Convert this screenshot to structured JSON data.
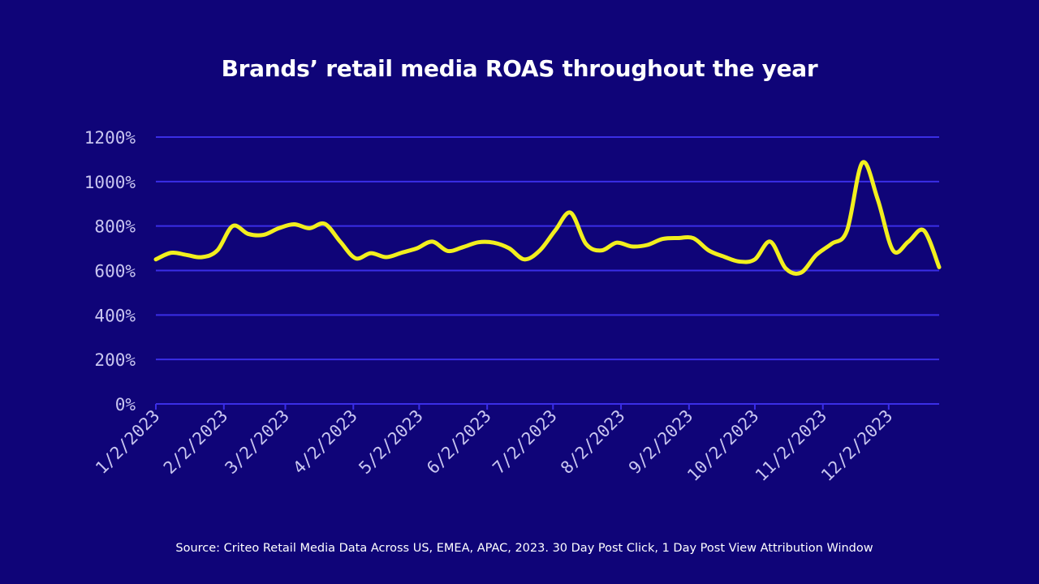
{
  "chart_data": {
    "type": "line",
    "title": "Brands’ retail media ROAS throughout the year",
    "xlabel": "",
    "ylabel": "",
    "ylim": [
      0,
      1200
    ],
    "y_ticks": [
      "0%",
      "200%",
      "400%",
      "600%",
      "800%",
      "1000%",
      "1200%"
    ],
    "x_ticks": [
      "1/2/2023",
      "2/2/2023",
      "3/2/2023",
      "4/2/2023",
      "5/2/2023",
      "6/2/2023",
      "7/2/2023",
      "8/2/2023",
      "9/2/2023",
      "10/2/2023",
      "11/2/2023",
      "12/2/2023"
    ],
    "grid": true,
    "series": [
      {
        "values": [
          [
            "2023-01-02",
            650
          ],
          [
            "2023-01-09",
            680
          ],
          [
            "2023-01-16",
            670
          ],
          [
            "2023-01-23",
            660
          ],
          [
            "2023-01-30",
            690
          ],
          [
            "2023-02-06",
            800
          ],
          [
            "2023-02-13",
            765
          ],
          [
            "2023-02-20",
            760
          ],
          [
            "2023-02-27",
            790
          ],
          [
            "2023-03-06",
            808
          ],
          [
            "2023-03-13",
            790
          ],
          [
            "2023-03-20",
            810
          ],
          [
            "2023-03-27",
            730
          ],
          [
            "2023-04-03",
            655
          ],
          [
            "2023-04-10",
            678
          ],
          [
            "2023-04-17",
            660
          ],
          [
            "2023-04-24",
            680
          ],
          [
            "2023-05-01",
            700
          ],
          [
            "2023-05-08",
            730
          ],
          [
            "2023-05-15",
            688
          ],
          [
            "2023-05-22",
            705
          ],
          [
            "2023-05-29",
            727
          ],
          [
            "2023-06-05",
            725
          ],
          [
            "2023-06-12",
            700
          ],
          [
            "2023-06-19",
            650
          ],
          [
            "2023-06-26",
            690
          ],
          [
            "2023-07-03",
            780
          ],
          [
            "2023-07-10",
            860
          ],
          [
            "2023-07-17",
            720
          ],
          [
            "2023-07-24",
            690
          ],
          [
            "2023-07-31",
            725
          ],
          [
            "2023-08-07",
            708
          ],
          [
            "2023-08-14",
            715
          ],
          [
            "2023-08-21",
            742
          ],
          [
            "2023-08-28",
            746
          ],
          [
            "2023-09-04",
            745
          ],
          [
            "2023-09-11",
            690
          ],
          [
            "2023-09-18",
            662
          ],
          [
            "2023-09-25",
            640
          ],
          [
            "2023-10-02",
            650
          ],
          [
            "2023-10-09",
            730
          ],
          [
            "2023-10-16",
            610
          ],
          [
            "2023-10-23",
            590
          ],
          [
            "2023-10-30",
            670
          ],
          [
            "2023-11-06",
            720
          ],
          [
            "2023-11-13",
            780
          ],
          [
            "2023-11-20",
            1085
          ],
          [
            "2023-11-27",
            920
          ],
          [
            "2023-12-04",
            690
          ],
          [
            "2023-12-11",
            730
          ],
          [
            "2023-12-18",
            780
          ],
          [
            "2023-12-25",
            615
          ]
        ]
      }
    ],
    "colors": {
      "background": "#0f0478",
      "line": "#f2ef1e",
      "grid": "#3a2ee6",
      "text": "#c9c6f0"
    }
  },
  "source_text": "Source: Criteo Retail Media Data Across US, EMEA, APAC, 2023. 30 Day Post Click, 1 Day Post View Attribution Window"
}
